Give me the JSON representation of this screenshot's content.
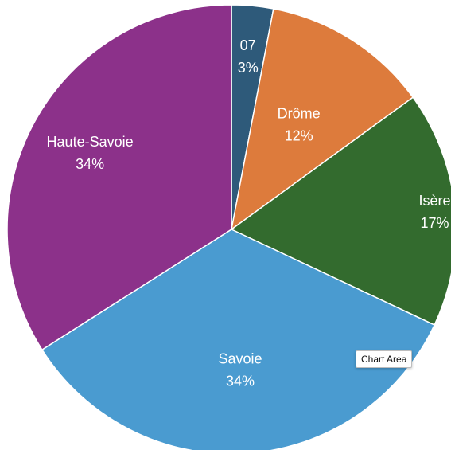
{
  "chart_data": {
    "type": "pie",
    "slices": [
      {
        "label": "07",
        "percent_label": "3%",
        "value": 3,
        "color": "#2e5a7a"
      },
      {
        "label": "Drôme",
        "percent_label": "12%",
        "value": 12,
        "color": "#dd7b3c"
      },
      {
        "label": "Isère",
        "percent_label": "17%",
        "value": 17,
        "color": "#336b2e"
      },
      {
        "label": "Savoie",
        "percent_label": "34%",
        "value": 34,
        "color": "#4a9bd0"
      },
      {
        "label": "Haute-Savoie",
        "percent_label": "34%",
        "value": 34,
        "color": "#8c318a"
      }
    ],
    "start_angle_deg": 0,
    "direction": "clockwise",
    "legend": "none"
  },
  "tooltip": {
    "text": "Chart Area"
  }
}
